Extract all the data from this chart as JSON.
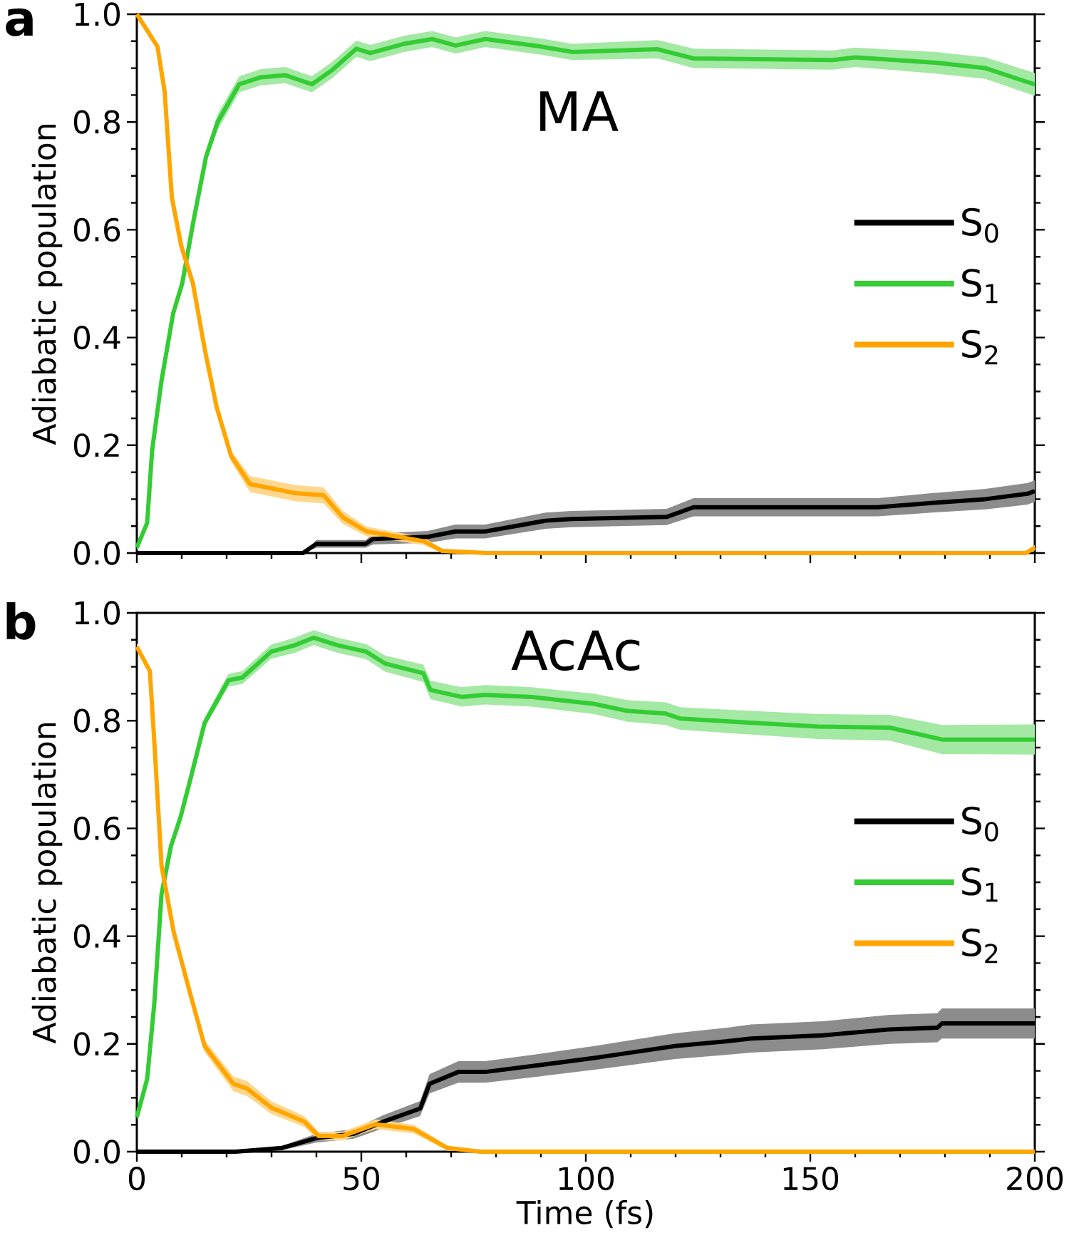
{
  "chart_data": [
    {
      "type": "line",
      "ylabel": "Adiabatic population",
      "annotations": [
        "a",
        "MA"
      ],
      "xlim": [
        0,
        200
      ],
      "ylim": [
        0.0,
        1.0
      ],
      "xticks": [
        0,
        50,
        100,
        150,
        200
      ],
      "yticks": [
        {
          "value": 0.0,
          "label": "0.0"
        },
        {
          "value": 0.2,
          "label": "0.2"
        },
        {
          "value": 0.4,
          "label": "0.4"
        },
        {
          "value": 0.6,
          "label": "0.6"
        },
        {
          "value": 0.8,
          "label": "0.8"
        },
        {
          "value": 1.0,
          "label": "1.0"
        }
      ],
      "tick_labels": "y",
      "legend": "right",
      "line_style": "solid",
      "series": [
        {
          "name": "S$_{0}$",
          "color": "#000000",
          "x": [
            0,
            37,
            40,
            51,
            52.6,
            64.8,
            71,
            77.6,
            91,
            96.8,
            118,
            124,
            165,
            177,
            189,
            198.4,
            200
          ],
          "values": [
            0,
            0,
            0.017,
            0.017,
            0.026,
            0.03,
            0.04,
            0.04,
            0.06,
            0.063,
            0.067,
            0.085,
            0.085,
            0.093,
            0.1,
            0.11,
            0.115
          ],
          "lower": [
            0,
            0,
            0.01,
            0.01,
            0.016,
            0.019,
            0.027,
            0.027,
            0.045,
            0.048,
            0.052,
            0.068,
            0.068,
            0.075,
            0.081,
            0.09,
            0.095
          ],
          "upper": [
            0,
            0,
            0.024,
            0.024,
            0.036,
            0.041,
            0.053,
            0.053,
            0.075,
            0.078,
            0.082,
            0.102,
            0.102,
            0.111,
            0.119,
            0.13,
            0.135
          ]
        },
        {
          "name": "S$_{1}$",
          "color": "#33cc33",
          "x": [
            0,
            2.3,
            3.4,
            5.5,
            8.1,
            10.1,
            12.7,
            15.4,
            18,
            22.8,
            27.6,
            33,
            39,
            43.6,
            48.9,
            52,
            59.5,
            65.8,
            71,
            77.6,
            90,
            97,
            116,
            124,
            155,
            160,
            178,
            189,
            198.4,
            200
          ],
          "values": [
            0.01,
            0.056,
            0.19,
            0.32,
            0.445,
            0.5,
            0.62,
            0.735,
            0.8,
            0.87,
            0.883,
            0.887,
            0.87,
            0.897,
            0.936,
            0.928,
            0.945,
            0.954,
            0.942,
            0.954,
            0.94,
            0.93,
            0.935,
            0.918,
            0.915,
            0.92,
            0.91,
            0.9,
            0.874,
            0.87
          ],
          "lower": [
            0.005,
            0.051,
            0.185,
            0.315,
            0.44,
            0.495,
            0.61,
            0.725,
            0.785,
            0.855,
            0.868,
            0.872,
            0.855,
            0.882,
            0.921,
            0.913,
            0.93,
            0.939,
            0.927,
            0.939,
            0.925,
            0.915,
            0.918,
            0.9,
            0.897,
            0.902,
            0.89,
            0.88,
            0.853,
            0.849
          ],
          "upper": [
            0.015,
            0.061,
            0.195,
            0.325,
            0.45,
            0.505,
            0.63,
            0.745,
            0.815,
            0.885,
            0.898,
            0.902,
            0.885,
            0.912,
            0.951,
            0.943,
            0.96,
            0.969,
            0.957,
            0.969,
            0.955,
            0.945,
            0.952,
            0.936,
            0.933,
            0.938,
            0.93,
            0.92,
            0.895,
            0.891
          ]
        },
        {
          "name": "S$_{2}$",
          "color": "#ffa500",
          "x": [
            0,
            4.6,
            6.2,
            7.8,
            9.9,
            12.5,
            15.2,
            17.8,
            21,
            25.2,
            30,
            35.3,
            41.6,
            45.9,
            51.2,
            57.5,
            63.9,
            68,
            78,
            120,
            160,
            198,
            200
          ],
          "values": [
            1.0,
            0.94,
            0.856,
            0.66,
            0.57,
            0.5,
            0.375,
            0.27,
            0.18,
            0.128,
            0.12,
            0.111,
            0.107,
            0.066,
            0.04,
            0.031,
            0.022,
            0.004,
            0,
            0,
            0,
            0,
            0.01
          ],
          "lower": [
            1.0,
            0.935,
            0.85,
            0.655,
            0.565,
            0.495,
            0.37,
            0.263,
            0.17,
            0.113,
            0.105,
            0.096,
            0.092,
            0.054,
            0.031,
            0.023,
            0.015,
            0,
            0,
            0,
            0,
            0,
            0.005
          ],
          "upper": [
            1.0,
            0.945,
            0.862,
            0.665,
            0.575,
            0.505,
            0.38,
            0.277,
            0.19,
            0.143,
            0.135,
            0.126,
            0.122,
            0.078,
            0.049,
            0.039,
            0.029,
            0.008,
            0,
            0,
            0,
            0,
            0.015
          ]
        }
      ]
    },
    {
      "type": "line",
      "xlabel": "Time (fs)",
      "ylabel": "Adiabatic population",
      "annotations": [
        "b",
        "AcAc"
      ],
      "xlim": [
        0,
        200
      ],
      "ylim": [
        0.0,
        1.0
      ],
      "xticks": [
        0,
        50,
        100,
        150,
        200
      ],
      "yticks": [
        {
          "value": 0.0,
          "label": "0.0"
        },
        {
          "value": 0.2,
          "label": "0.2"
        },
        {
          "value": 0.4,
          "label": "0.4"
        },
        {
          "value": 0.6,
          "label": "0.6"
        },
        {
          "value": 0.8,
          "label": "0.8"
        },
        {
          "value": 1.0,
          "label": "1.0"
        }
      ],
      "legend": "right",
      "line_style": "solid",
      "series": [
        {
          "name": "S$_{0}$",
          "color": "#000000",
          "x": [
            0,
            22,
            32.4,
            39.9,
            48.3,
            54.7,
            63.1,
            65.2,
            71.6,
            77.6,
            90,
            101.9,
            109.3,
            119.9,
            131.5,
            136.8,
            152.8,
            167.7,
            178.3,
            179.3,
            200
          ],
          "values": [
            0,
            0,
            0.007,
            0.025,
            0.033,
            0.055,
            0.08,
            0.126,
            0.148,
            0.148,
            0.161,
            0.174,
            0.183,
            0.196,
            0.205,
            0.21,
            0.216,
            0.227,
            0.23,
            0.238,
            0.238
          ],
          "lower": [
            0,
            0,
            0.003,
            0.017,
            0.024,
            0.043,
            0.066,
            0.108,
            0.128,
            0.128,
            0.14,
            0.152,
            0.16,
            0.172,
            0.18,
            0.184,
            0.19,
            0.2,
            0.203,
            0.21,
            0.21
          ],
          "upper": [
            0,
            0,
            0.011,
            0.033,
            0.042,
            0.067,
            0.094,
            0.144,
            0.168,
            0.168,
            0.182,
            0.196,
            0.206,
            0.22,
            0.23,
            0.236,
            0.242,
            0.254,
            0.257,
            0.266,
            0.266
          ]
        },
        {
          "name": "S$_{1}$",
          "color": "#33cc33",
          "x": [
            0,
            2.3,
            3.9,
            5.5,
            7.6,
            9.7,
            11.9,
            15.1,
            20.4,
            23.5,
            29.9,
            35.2,
            39.4,
            44.7,
            51.1,
            55.3,
            63.8,
            65.4,
            72.3,
            77.6,
            88,
            101.9,
            109.3,
            117.8,
            121,
            137,
            151.8,
            167.7,
            179.3,
            200
          ],
          "values": [
            0.064,
            0.135,
            0.276,
            0.478,
            0.567,
            0.62,
            0.69,
            0.796,
            0.875,
            0.88,
            0.928,
            0.94,
            0.954,
            0.94,
            0.928,
            0.906,
            0.888,
            0.857,
            0.844,
            0.848,
            0.844,
            0.831,
            0.818,
            0.813,
            0.804,
            0.796,
            0.789,
            0.787,
            0.765,
            0.765
          ],
          "lower": [
            0.06,
            0.13,
            0.27,
            0.472,
            0.561,
            0.613,
            0.682,
            0.787,
            0.863,
            0.868,
            0.915,
            0.926,
            0.94,
            0.926,
            0.914,
            0.891,
            0.872,
            0.84,
            0.826,
            0.83,
            0.826,
            0.812,
            0.798,
            0.792,
            0.783,
            0.774,
            0.766,
            0.763,
            0.738,
            0.737
          ],
          "upper": [
            0.068,
            0.14,
            0.282,
            0.484,
            0.573,
            0.627,
            0.698,
            0.805,
            0.887,
            0.892,
            0.941,
            0.954,
            0.968,
            0.954,
            0.942,
            0.921,
            0.904,
            0.874,
            0.862,
            0.866,
            0.862,
            0.85,
            0.838,
            0.834,
            0.825,
            0.818,
            0.812,
            0.811,
            0.792,
            0.793
          ]
        },
        {
          "name": "S$_{2}$",
          "color": "#ffa500",
          "x": [
            0,
            2.9,
            3.9,
            5.5,
            8.2,
            11.9,
            15.1,
            21.5,
            24.6,
            29.9,
            37.3,
            40.5,
            45.8,
            53.2,
            61.7,
            69.1,
            76.5,
            200
          ],
          "values": [
            0.937,
            0.892,
            0.76,
            0.531,
            0.408,
            0.293,
            0.196,
            0.126,
            0.117,
            0.082,
            0.056,
            0.029,
            0.029,
            0.051,
            0.042,
            0.007,
            0,
            0
          ],
          "lower": [
            0.93,
            0.885,
            0.753,
            0.524,
            0.4,
            0.283,
            0.185,
            0.112,
            0.103,
            0.07,
            0.046,
            0.021,
            0.021,
            0.042,
            0.034,
            0.002,
            0,
            0
          ],
          "upper": [
            0.944,
            0.899,
            0.767,
            0.538,
            0.416,
            0.303,
            0.207,
            0.14,
            0.131,
            0.094,
            0.066,
            0.037,
            0.037,
            0.06,
            0.05,
            0.012,
            0,
            0
          ]
        }
      ]
    }
  ]
}
